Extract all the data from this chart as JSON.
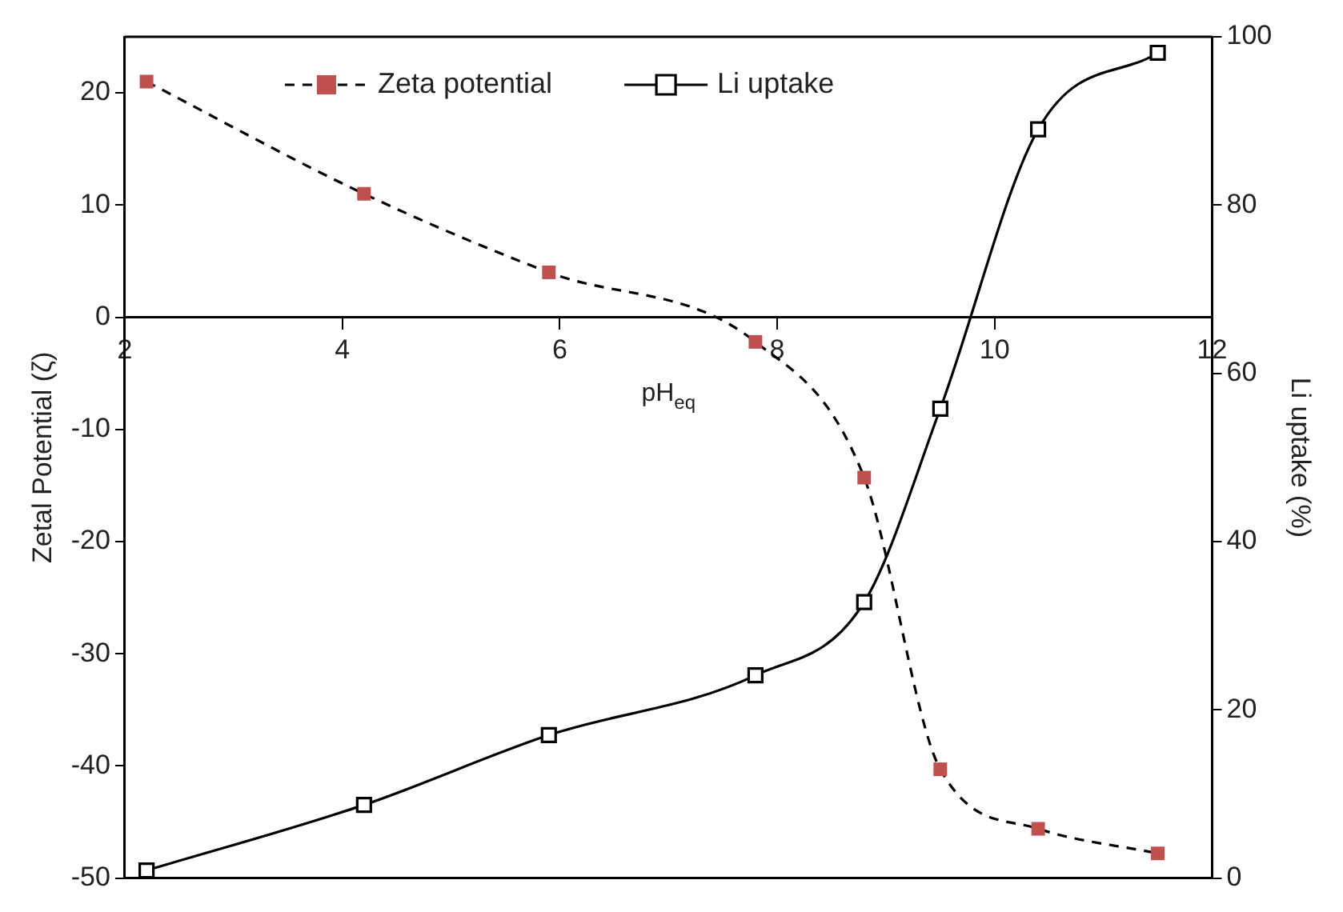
{
  "chart_data": {
    "type": "line",
    "xlabel": "pH$_{eq}$",
    "ylabel": "Zetal Potential (ζ)",
    "y2label": "Li uptake (%)",
    "xlim": [
      2,
      12
    ],
    "xticks": [
      2,
      4,
      6,
      8,
      10,
      12
    ],
    "ylim": [
      -50,
      25
    ],
    "yticks": [
      -50,
      -40,
      -30,
      -20,
      -10,
      0,
      10,
      20
    ],
    "y2lim": [
      0,
      100
    ],
    "y2ticks": [
      0,
      20,
      40,
      60,
      80,
      100
    ],
    "grid": false,
    "legend": "top",
    "marker": "square",
    "series": [
      {
        "name": "Zeta potential",
        "color": "#c0504d",
        "line_style": "dashed",
        "x": [
          2.2,
          4.2,
          5.9,
          7.8,
          8.8,
          9.5,
          10.4,
          11.5
        ],
        "values": [
          21.0,
          11.0,
          4.0,
          -2.2,
          -14.3,
          -40.3,
          -45.6,
          -47.8
        ]
      },
      {
        "name": "Li uptake",
        "color": "#000000",
        "line_style": "solid",
        "axis": "y2",
        "x": [
          2.2,
          4.2,
          5.9,
          7.8,
          8.8,
          9.5,
          10.4,
          11.5
        ],
        "values": [
          0.9,
          8.7,
          17.0,
          24.1,
          32.8,
          55.8,
          89.0,
          98.1
        ]
      }
    ]
  }
}
